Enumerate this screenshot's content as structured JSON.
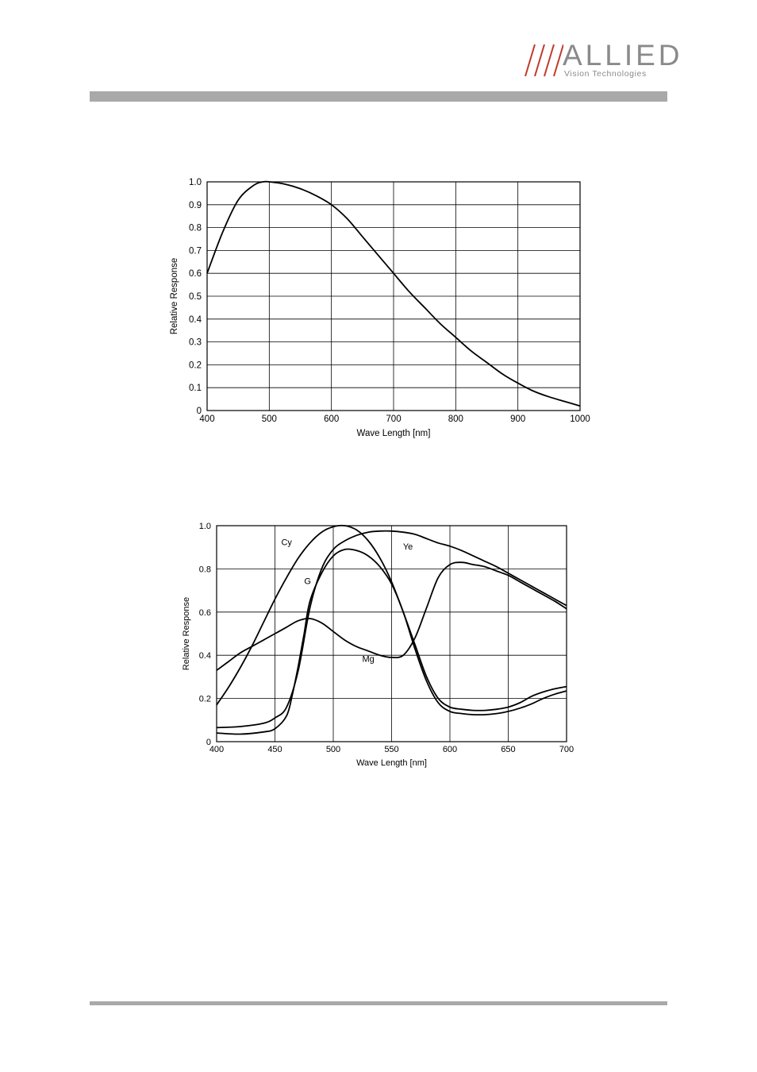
{
  "header": {
    "logo_word": "ALLIED",
    "logo_subtitle": "Vision Technologies",
    "logo_color": "#8a8a8a",
    "logo_slash_color": "#c0392b",
    "rule_color": "#a9a9a9"
  },
  "chart_data": [
    {
      "type": "line",
      "title": "",
      "xlabel": "Wave Length [nm]",
      "ylabel": "Relative Response",
      "xlim": [
        400,
        1000
      ],
      "ylim": [
        0,
        1.0
      ],
      "grid": true,
      "x_ticks": [
        "400",
        "500",
        "600",
        "700",
        "800",
        "900",
        "1000"
      ],
      "y_ticks": [
        "0",
        "0.1",
        "0.2",
        "0.3",
        "0.4",
        "0.5",
        "0.6",
        "0.7",
        "0.8",
        "0.9",
        "1.0"
      ],
      "x_tick_values": [
        400,
        500,
        600,
        700,
        800,
        900,
        1000
      ],
      "y_tick_values": [
        0,
        0.1,
        0.2,
        0.3,
        0.4,
        0.5,
        0.6,
        0.7,
        0.8,
        0.9,
        1.0
      ],
      "series": [
        {
          "x": [
            400,
            425,
            450,
            475,
            490,
            500,
            525,
            550,
            575,
            600,
            625,
            650,
            675,
            700,
            725,
            750,
            775,
            800,
            825,
            850,
            875,
            900,
            925,
            950,
            975,
            1000
          ],
          "y": [
            0.6,
            0.78,
            0.92,
            0.985,
            1.0,
            1.0,
            0.99,
            0.97,
            0.94,
            0.9,
            0.84,
            0.76,
            0.68,
            0.6,
            0.52,
            0.45,
            0.38,
            0.32,
            0.26,
            0.21,
            0.16,
            0.12,
            0.085,
            0.06,
            0.04,
            0.02
          ]
        }
      ]
    },
    {
      "type": "line",
      "title": "",
      "xlabel": "Wave Length [nm]",
      "ylabel": "Relative Response",
      "xlim": [
        400,
        700
      ],
      "ylim": [
        0,
        1.0
      ],
      "grid": true,
      "x_ticks": [
        "400",
        "450",
        "500",
        "550",
        "600",
        "650",
        "700"
      ],
      "y_ticks": [
        "0",
        "0.2",
        "0.4",
        "0.6",
        "0.8",
        "1.0"
      ],
      "x_tick_values": [
        400,
        450,
        500,
        550,
        600,
        650,
        700
      ],
      "y_tick_values": [
        0,
        0.2,
        0.4,
        0.6,
        0.8,
        1.0
      ],
      "series": [
        {
          "name": "Cy",
          "x": [
            400,
            410,
            420,
            430,
            440,
            450,
            460,
            470,
            480,
            490,
            500,
            510,
            520,
            530,
            540,
            550,
            560,
            570,
            580,
            590,
            600,
            610,
            620,
            630,
            640,
            650,
            660,
            670,
            680,
            690,
            700
          ],
          "y": [
            0.17,
            0.25,
            0.34,
            0.44,
            0.55,
            0.66,
            0.76,
            0.85,
            0.92,
            0.97,
            0.995,
            1.0,
            0.98,
            0.93,
            0.85,
            0.74,
            0.6,
            0.45,
            0.3,
            0.2,
            0.16,
            0.15,
            0.145,
            0.145,
            0.15,
            0.16,
            0.18,
            0.21,
            0.23,
            0.245,
            0.255
          ],
          "label_x": 460,
          "label_y": 0.91
        },
        {
          "name": "Ye",
          "x": [
            400,
            420,
            440,
            450,
            460,
            470,
            480,
            490,
            500,
            510,
            520,
            530,
            540,
            550,
            560,
            570,
            580,
            590,
            600,
            610,
            620,
            630,
            640,
            650,
            660,
            670,
            680,
            690,
            700
          ],
          "y": [
            0.065,
            0.07,
            0.085,
            0.11,
            0.16,
            0.33,
            0.62,
            0.8,
            0.89,
            0.93,
            0.955,
            0.97,
            0.975,
            0.975,
            0.97,
            0.96,
            0.94,
            0.92,
            0.905,
            0.885,
            0.86,
            0.835,
            0.81,
            0.78,
            0.75,
            0.72,
            0.69,
            0.66,
            0.63
          ],
          "label_x": 564,
          "label_y": 0.89
        },
        {
          "name": "G",
          "x": [
            400,
            420,
            440,
            450,
            460,
            465,
            470,
            475,
            480,
            490,
            500,
            510,
            520,
            530,
            540,
            550,
            560,
            570,
            580,
            590,
            600,
            610,
            620,
            630,
            640,
            650,
            660,
            670,
            680,
            690,
            700
          ],
          "y": [
            0.04,
            0.035,
            0.045,
            0.06,
            0.12,
            0.22,
            0.35,
            0.5,
            0.65,
            0.78,
            0.86,
            0.89,
            0.885,
            0.86,
            0.81,
            0.73,
            0.6,
            0.43,
            0.28,
            0.18,
            0.14,
            0.13,
            0.125,
            0.125,
            0.13,
            0.14,
            0.155,
            0.175,
            0.2,
            0.22,
            0.235
          ],
          "label_x": 478,
          "label_y": 0.73
        },
        {
          "name": "Mg",
          "x": [
            400,
            410,
            420,
            430,
            440,
            450,
            460,
            470,
            480,
            490,
            500,
            510,
            520,
            530,
            540,
            550,
            560,
            570,
            580,
            590,
            600,
            610,
            620,
            630,
            640,
            650,
            660,
            670,
            680,
            690,
            700
          ],
          "y": [
            0.33,
            0.37,
            0.41,
            0.44,
            0.47,
            0.5,
            0.53,
            0.56,
            0.57,
            0.55,
            0.51,
            0.47,
            0.44,
            0.42,
            0.4,
            0.39,
            0.4,
            0.48,
            0.62,
            0.76,
            0.82,
            0.83,
            0.82,
            0.81,
            0.79,
            0.77,
            0.74,
            0.71,
            0.68,
            0.65,
            0.615
          ],
          "label_x": 530,
          "label_y": 0.37
        }
      ]
    }
  ]
}
